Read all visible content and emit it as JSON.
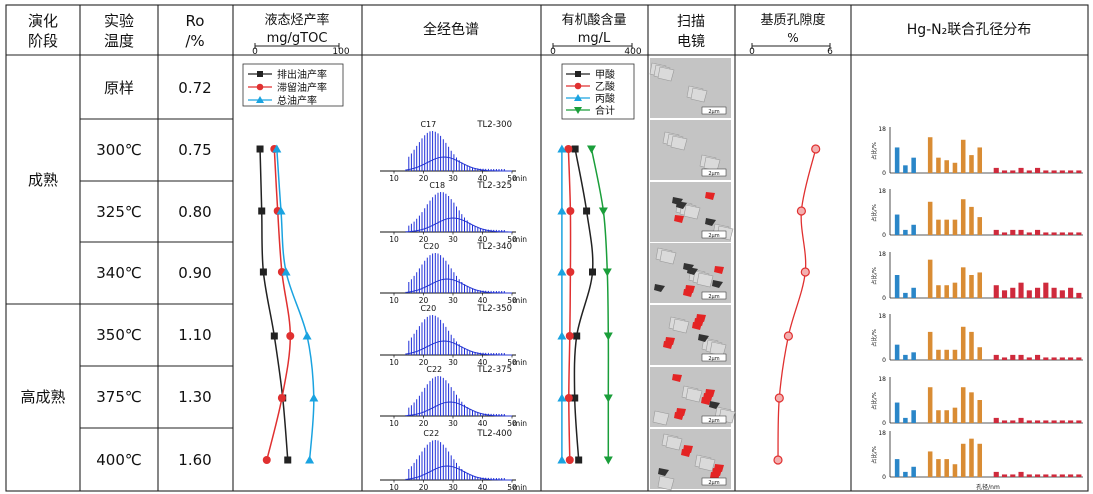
{
  "headers": {
    "stage": [
      "演化",
      "阶段"
    ],
    "temp": [
      "实验",
      "温度"
    ],
    "ro": [
      "Ro",
      "/%"
    ],
    "oil": "液态烃产率",
    "oil_unit": "mg/gTOC",
    "gc": "全经色谱",
    "acid": "有机酸含量",
    "acid_unit": "mg/L",
    "sem": [
      "扫描",
      "电镜"
    ],
    "por": "基质孔隙度",
    "por_unit": "%",
    "hgn": "Hg-N₂联合孔径分布"
  },
  "stages": [
    "成熟",
    "高成熟"
  ],
  "temperatures": [
    "原样",
    "300℃",
    "325℃",
    "340℃",
    "350℃",
    "375℃",
    "400℃"
  ],
  "ro_values": [
    "0.72",
    "0.75",
    "0.80",
    "0.90",
    "1.10",
    "1.30",
    "1.60"
  ],
  "chart_data": [
    {
      "type": "line",
      "id": "oil_yield",
      "xlim": [
        0,
        100
      ],
      "x_tick_labels": [
        "0",
        "100"
      ],
      "samples": [
        "300℃",
        "325℃",
        "340℃",
        "350℃",
        "375℃",
        "400℃"
      ],
      "series": [
        {
          "name": "排出油产率",
          "color": "#222222",
          "marker": "square",
          "values": [
            6,
            8,
            10,
            23,
            33,
            39
          ]
        },
        {
          "name": "滞留油产率",
          "color": "#e03030",
          "marker": "circle",
          "values": [
            23,
            27,
            32,
            42,
            32,
            14
          ]
        },
        {
          "name": "总油产率",
          "color": "#1aa3e0",
          "marker": "triangle",
          "values": [
            26,
            31,
            37,
            62,
            70,
            65
          ]
        }
      ]
    },
    {
      "type": "line",
      "id": "gc_traces",
      "samples": [
        {
          "label": "TL2-300",
          "peak": "C17",
          "center": 27
        },
        {
          "label": "TL2-325",
          "peak": "C18",
          "center": 30
        },
        {
          "label": "TL2-340",
          "peak": "C20",
          "center": 28
        },
        {
          "label": "TL2-350",
          "peak": "C20",
          "center": 27
        },
        {
          "label": "TL2-375",
          "peak": "C22",
          "center": 29
        },
        {
          "label": "TL2-400",
          "peak": "C22",
          "center": 28
        }
      ],
      "x_ticks": [
        "10",
        "20",
        "30",
        "40",
        "50"
      ],
      "x_unit": "min"
    },
    {
      "type": "line",
      "id": "organic_acid",
      "xlim": [
        0,
        400
      ],
      "x_tick_labels": [
        "0",
        "400"
      ],
      "samples": [
        "300℃",
        "325℃",
        "340℃",
        "350℃",
        "375℃",
        "400℃"
      ],
      "series": [
        {
          "name": "甲酸",
          "color": "#222222",
          "marker": "square",
          "values": [
            112,
            170,
            200,
            120,
            110,
            130
          ]
        },
        {
          "name": "乙酸",
          "color": "#e03030",
          "marker": "circle",
          "values": [
            78,
            88,
            88,
            85,
            80,
            85
          ]
        },
        {
          "name": "丙酸",
          "color": "#1aa3e0",
          "marker": "triangle",
          "values": [
            45,
            45,
            45,
            45,
            45,
            45
          ]
        },
        {
          "name": "合计",
          "color": "#1a9e3a",
          "marker": "triangle-down",
          "values": [
            195,
            255,
            275,
            280,
            280,
            280
          ]
        }
      ]
    },
    {
      "type": "line",
      "id": "porosity",
      "xlim": [
        0,
        6
      ],
      "x_tick_labels": [
        "0",
        "6"
      ],
      "samples": [
        "300℃",
        "325℃",
        "340℃",
        "350℃",
        "375℃",
        "400℃"
      ],
      "series": [
        {
          "name": "",
          "color": "#e03030",
          "marker": "circle",
          "values": [
            4.9,
            3.8,
            4.1,
            2.8,
            2.1,
            2.0
          ]
        }
      ]
    },
    {
      "type": "bar",
      "id": "pore_distribution",
      "y_tick_labels": [
        "0",
        "18"
      ],
      "ylabel": "占比/%",
      "xlabel": "孔径/nm",
      "samples": [
        {
          "values": [
            10,
            3,
            6,
            0,
            14,
            6,
            5,
            4,
            13,
            7,
            10,
            0,
            2,
            1,
            1,
            2,
            1,
            2,
            1,
            1,
            1,
            1,
            1
          ]
        },
        {
          "values": [
            8,
            2,
            4,
            0,
            13,
            6,
            6,
            6,
            14,
            11,
            7,
            0,
            2,
            1,
            2,
            2,
            1,
            2,
            1,
            1,
            1,
            1,
            1
          ]
        },
        {
          "values": [
            9,
            2,
            4,
            0,
            15,
            5,
            5,
            6,
            12,
            9,
            10,
            0,
            5,
            3,
            4,
            6,
            3,
            4,
            6,
            4,
            3,
            4,
            2
          ]
        },
        {
          "values": [
            6,
            2,
            3,
            0,
            11,
            4,
            4,
            4,
            13,
            11,
            5,
            0,
            2,
            1,
            2,
            2,
            1,
            2,
            1,
            1,
            1,
            1,
            1
          ]
        },
        {
          "values": [
            8,
            2,
            5,
            0,
            14,
            5,
            5,
            6,
            14,
            12,
            9,
            0,
            2,
            1,
            1,
            2,
            1,
            1,
            1,
            1,
            1,
            1,
            1
          ]
        },
        {
          "values": [
            7,
            2,
            4,
            0,
            10,
            7,
            7,
            5,
            13,
            15,
            13,
            0,
            2,
            1,
            1,
            2,
            1,
            1,
            1,
            1,
            1,
            1,
            1
          ]
        }
      ]
    }
  ],
  "sem_scale": "2μm"
}
